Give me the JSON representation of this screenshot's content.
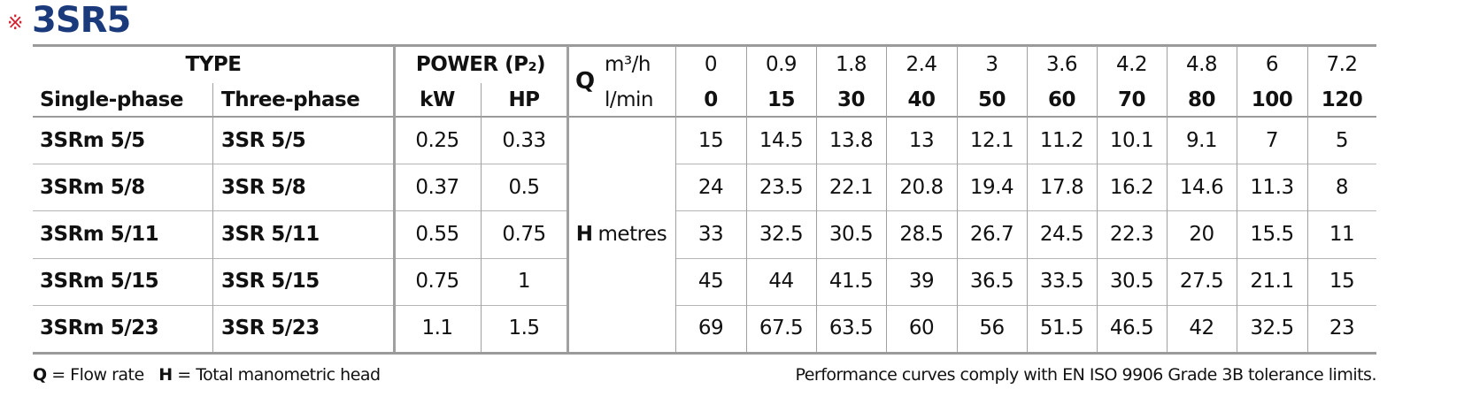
{
  "title_mark": "※",
  "title": "3SR5",
  "header": {
    "type": "TYPE",
    "power": "POWER (P₂)",
    "single_phase": "Single-phase",
    "three_phase": "Three-phase",
    "kw": "kW",
    "hp": "HP",
    "q": "Q",
    "unit_m3h": "m³/h",
    "unit_lmin": "l/min",
    "flow_m3h": [
      0,
      0.9,
      1.8,
      2.4,
      3,
      3.6,
      4.2,
      4.8,
      6,
      7.2
    ],
    "flow_lmin": [
      0,
      15,
      30,
      40,
      50,
      60,
      70,
      80,
      100,
      120
    ]
  },
  "h_label": "H",
  "h_unit": "metres",
  "rows": [
    {
      "single": "3SRm 5/5",
      "three": "3SR 5/5",
      "kw": 0.25,
      "hp": 0.33,
      "head": [
        15,
        14.5,
        13.8,
        13,
        12.1,
        11.2,
        10.1,
        9.1,
        7,
        5
      ]
    },
    {
      "single": "3SRm 5/8",
      "three": "3SR 5/8",
      "kw": 0.37,
      "hp": 0.5,
      "head": [
        24,
        23.5,
        22.1,
        20.8,
        19.4,
        17.8,
        16.2,
        14.6,
        11.3,
        8
      ]
    },
    {
      "single": "3SRm 5/11",
      "three": "3SR 5/11",
      "kw": 0.55,
      "hp": 0.75,
      "head": [
        33,
        32.5,
        30.5,
        28.5,
        26.7,
        24.5,
        22.3,
        20,
        15.5,
        11
      ]
    },
    {
      "single": "3SRm 5/15",
      "three": "3SR 5/15",
      "kw": 0.75,
      "hp": 1,
      "head": [
        45,
        44,
        41.5,
        39,
        36.5,
        33.5,
        30.5,
        27.5,
        21.1,
        15
      ]
    },
    {
      "single": "3SRm 5/23",
      "three": "3SR 5/23",
      "kw": 1.1,
      "hp": 1.5,
      "head": [
        69,
        67.5,
        63.5,
        60,
        56,
        51.5,
        46.5,
        42,
        32.5,
        23
      ]
    }
  ],
  "footer": {
    "q": "Q",
    "q_text": "= Flow rate",
    "h": "H",
    "h_text": "= Total manometric head",
    "note": "Performance curves comply with EN ISO 9906 Grade 3B tolerance limits."
  }
}
